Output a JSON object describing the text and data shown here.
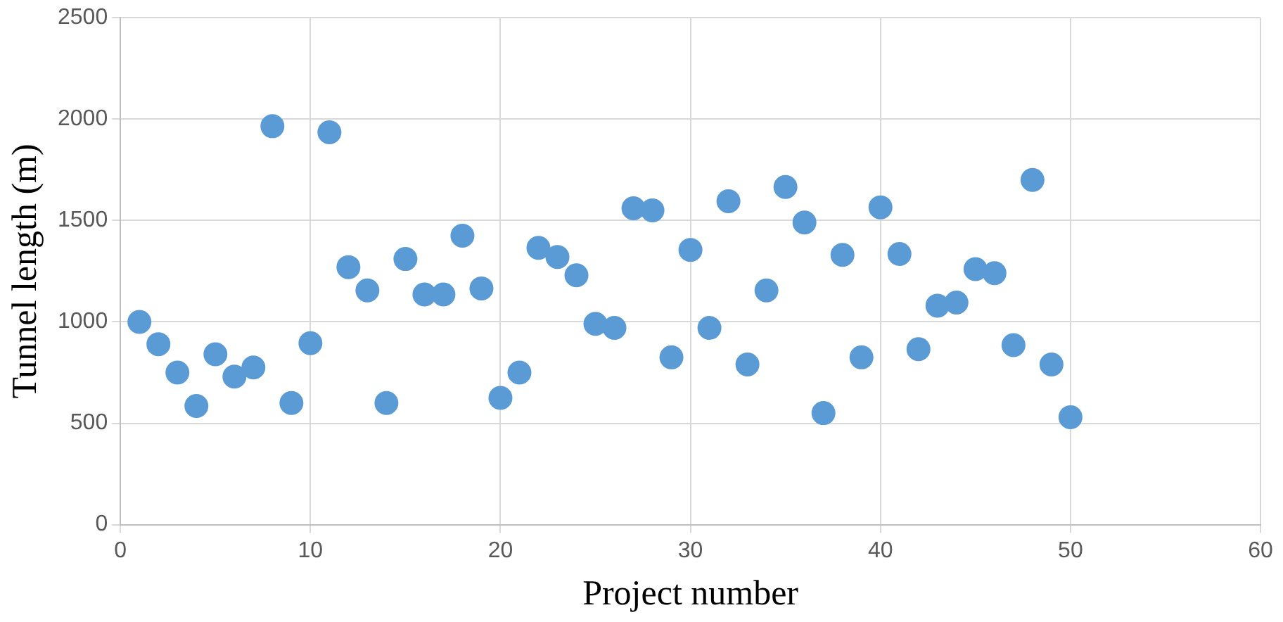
{
  "chart_data": {
    "type": "scatter",
    "xlabel": "Project number",
    "ylabel": "Tunnel length (m)",
    "x": [
      1,
      2,
      3,
      4,
      5,
      6,
      7,
      8,
      9,
      10,
      11,
      12,
      13,
      14,
      15,
      16,
      17,
      18,
      19,
      20,
      21,
      22,
      23,
      24,
      25,
      26,
      27,
      28,
      29,
      30,
      31,
      32,
      33,
      34,
      35,
      36,
      37,
      38,
      39,
      40,
      41,
      42,
      43,
      44,
      45,
      46,
      47,
      48,
      49,
      50
    ],
    "series": [
      {
        "color": "#5b9bd5",
        "values": [
          1000,
          890,
          750,
          585,
          840,
          730,
          775,
          1965,
          600,
          895,
          1935,
          1270,
          1155,
          600,
          1310,
          1135,
          1135,
          1425,
          1165,
          625,
          750,
          1365,
          1320,
          1230,
          990,
          970,
          1560,
          1550,
          825,
          1355,
          970,
          1595,
          790,
          1155,
          1665,
          1490,
          550,
          1330,
          825,
          1565,
          1335,
          865,
          1080,
          1095,
          1260,
          1240,
          885,
          1700,
          790,
          530
        ]
      }
    ],
    "xlim": [
      0,
      60
    ],
    "xticks": [
      0,
      10,
      20,
      30,
      40,
      50,
      60
    ],
    "ylim": [
      0,
      2500
    ],
    "yticks": [
      0,
      500,
      1000,
      1500,
      2000,
      2500
    ],
    "grid": true,
    "legend": false,
    "marker": "circle"
  }
}
